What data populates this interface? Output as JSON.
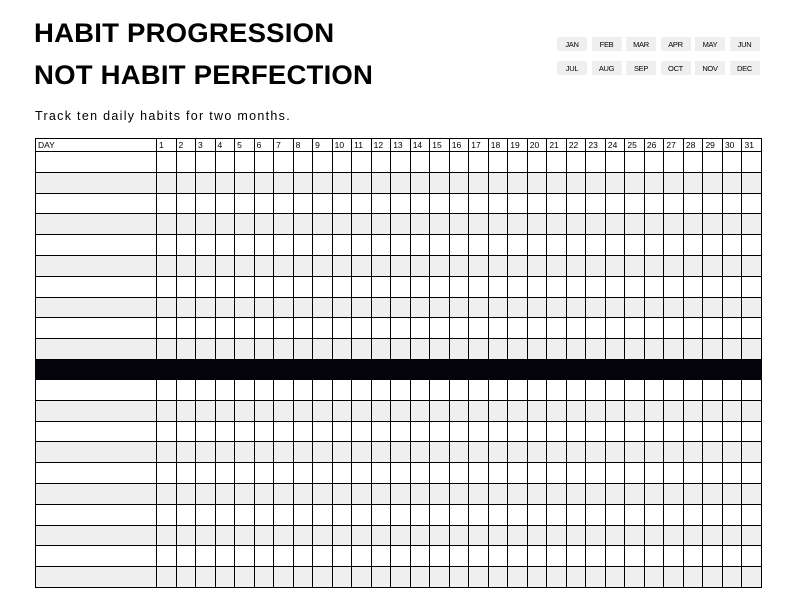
{
  "title": {
    "line1": "HABIT PROGRESSION",
    "line2": "NOT HABIT PERFECTION"
  },
  "subtitle": "Track ten daily habits for two months.",
  "months": [
    "JAN",
    "FEB",
    "MAR",
    "APR",
    "MAY",
    "JUN",
    "JUL",
    "AUG",
    "SEP",
    "OCT",
    "NOV",
    "DEC"
  ],
  "table": {
    "header_label": "DAY",
    "days": [
      "1",
      "2",
      "3",
      "4",
      "5",
      "6",
      "7",
      "8",
      "9",
      "10",
      "11",
      "12",
      "13",
      "14",
      "15",
      "16",
      "17",
      "18",
      "19",
      "20",
      "21",
      "22",
      "23",
      "24",
      "25",
      "26",
      "27",
      "28",
      "29",
      "30",
      "31"
    ],
    "rows_per_block": 10,
    "blocks": 2
  },
  "colors": {
    "row_alt": "#efefef",
    "divider": "#04040a",
    "month_tag": "#efefef"
  }
}
